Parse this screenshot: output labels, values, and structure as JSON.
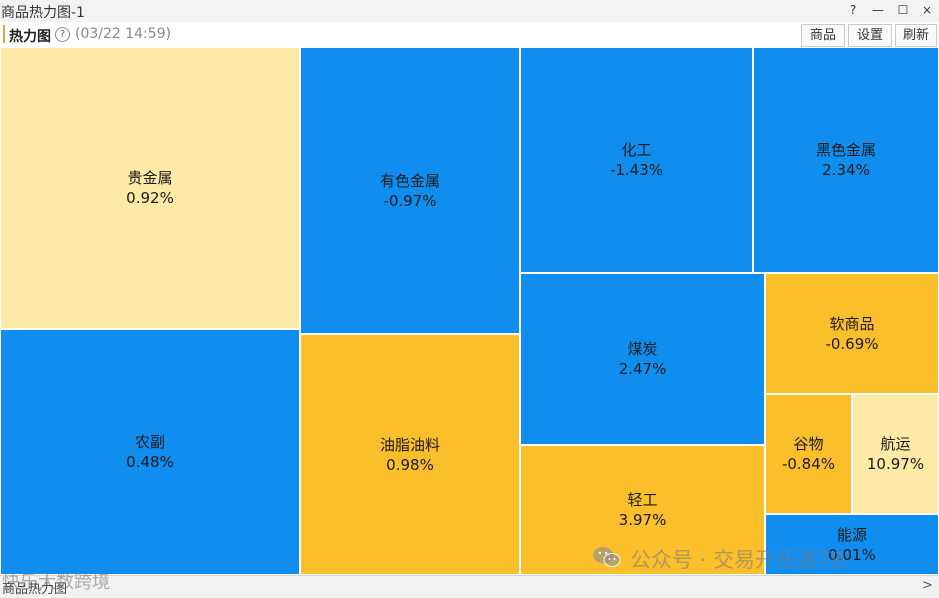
{
  "window": {
    "title": "商品热力图-1",
    "help_btn": "?",
    "minimize_btn": "—",
    "maximize_btn": "☐",
    "close_btn": "×"
  },
  "toolbar": {
    "title": "热力图",
    "help_icon": "?",
    "timestamp": "(03/22 14:59)",
    "buttons": [
      "商品",
      "设置",
      "刷新"
    ]
  },
  "heatmap": {
    "colors": {
      "up": "#fcbf2c",
      "strong_up": "#feeaa6",
      "down": "#108ef0"
    },
    "cells": [
      {
        "name": "贵金属",
        "value": "0.92%"
      },
      {
        "name": "农副",
        "value": "0.48%"
      },
      {
        "name": "有色金属",
        "value": "-0.97%"
      },
      {
        "name": "油脂油料",
        "value": "0.98%"
      },
      {
        "name": "化工",
        "value": "-1.43%"
      },
      {
        "name": "黑色金属",
        "value": "2.34%"
      },
      {
        "name": "煤炭",
        "value": "2.47%"
      },
      {
        "name": "软商品",
        "value": "-0.69%"
      },
      {
        "name": "谷物",
        "value": "-0.84%"
      },
      {
        "name": "航运",
        "value": "10.97%"
      },
      {
        "name": "轻工",
        "value": "3.97%"
      },
      {
        "name": "能源",
        "value": "0.01%"
      }
    ]
  },
  "bottom": {
    "tab_label": "商品热力图",
    "scroll_arrow": ">"
  },
  "watermark": {
    "left": "快乐大数跨境",
    "right": "公众号 · 交易开拓者TB"
  }
}
